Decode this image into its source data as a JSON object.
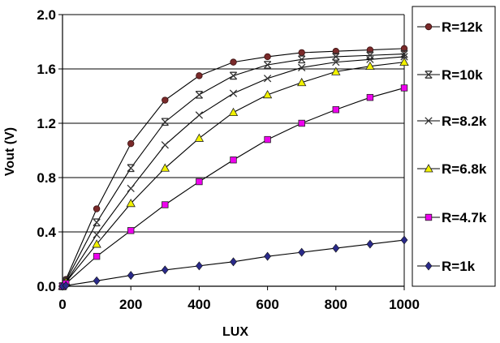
{
  "chart_data": {
    "type": "line",
    "title": "",
    "xlabel": "LUX",
    "ylabel": "Vout (V)",
    "xlim": [
      0,
      1000
    ],
    "ylim": [
      0,
      2.0
    ],
    "xticks": [
      "0",
      "200",
      "400",
      "600",
      "800",
      "1000"
    ],
    "yticks": [
      "0.0",
      "0.4",
      "0.8",
      "1.2",
      "1.6",
      "2.0"
    ],
    "grid": "horizontal",
    "legend_position": "right",
    "x": [
      0,
      10,
      100,
      200,
      300,
      400,
      500,
      600,
      700,
      800,
      900,
      1000
    ],
    "series": [
      {
        "name": "R=12k",
        "marker": "circle",
        "marker_color": "#7a2a2a",
        "values": [
          0.0,
          0.05,
          0.57,
          1.05,
          1.37,
          1.55,
          1.65,
          1.69,
          1.72,
          1.73,
          1.74,
          1.75
        ]
      },
      {
        "name": "R=10k",
        "marker": "asterisk",
        "marker_color": "#333333",
        "values": [
          0.0,
          0.04,
          0.47,
          0.87,
          1.21,
          1.41,
          1.55,
          1.63,
          1.67,
          1.69,
          1.7,
          1.71
        ]
      },
      {
        "name": "R=8.2k",
        "marker": "x",
        "marker_color": "#333333",
        "values": [
          0.0,
          0.03,
          0.38,
          0.72,
          1.04,
          1.26,
          1.42,
          1.53,
          1.61,
          1.65,
          1.67,
          1.69
        ]
      },
      {
        "name": "R=6.8k",
        "marker": "triangle",
        "marker_color": "#f2f200",
        "values": [
          0.0,
          0.03,
          0.31,
          0.61,
          0.87,
          1.09,
          1.28,
          1.41,
          1.5,
          1.58,
          1.62,
          1.65
        ]
      },
      {
        "name": "R=4.7k",
        "marker": "square",
        "marker_color": "#ee00ee",
        "values": [
          0.0,
          0.02,
          0.22,
          0.41,
          0.6,
          0.77,
          0.93,
          1.08,
          1.2,
          1.3,
          1.39,
          1.46
        ]
      },
      {
        "name": "R=1k",
        "marker": "diamond",
        "marker_color": "#2a2a8a",
        "values": [
          0.0,
          0.005,
          0.04,
          0.08,
          0.12,
          0.15,
          0.18,
          0.22,
          0.25,
          0.28,
          0.31,
          0.34
        ]
      }
    ]
  }
}
